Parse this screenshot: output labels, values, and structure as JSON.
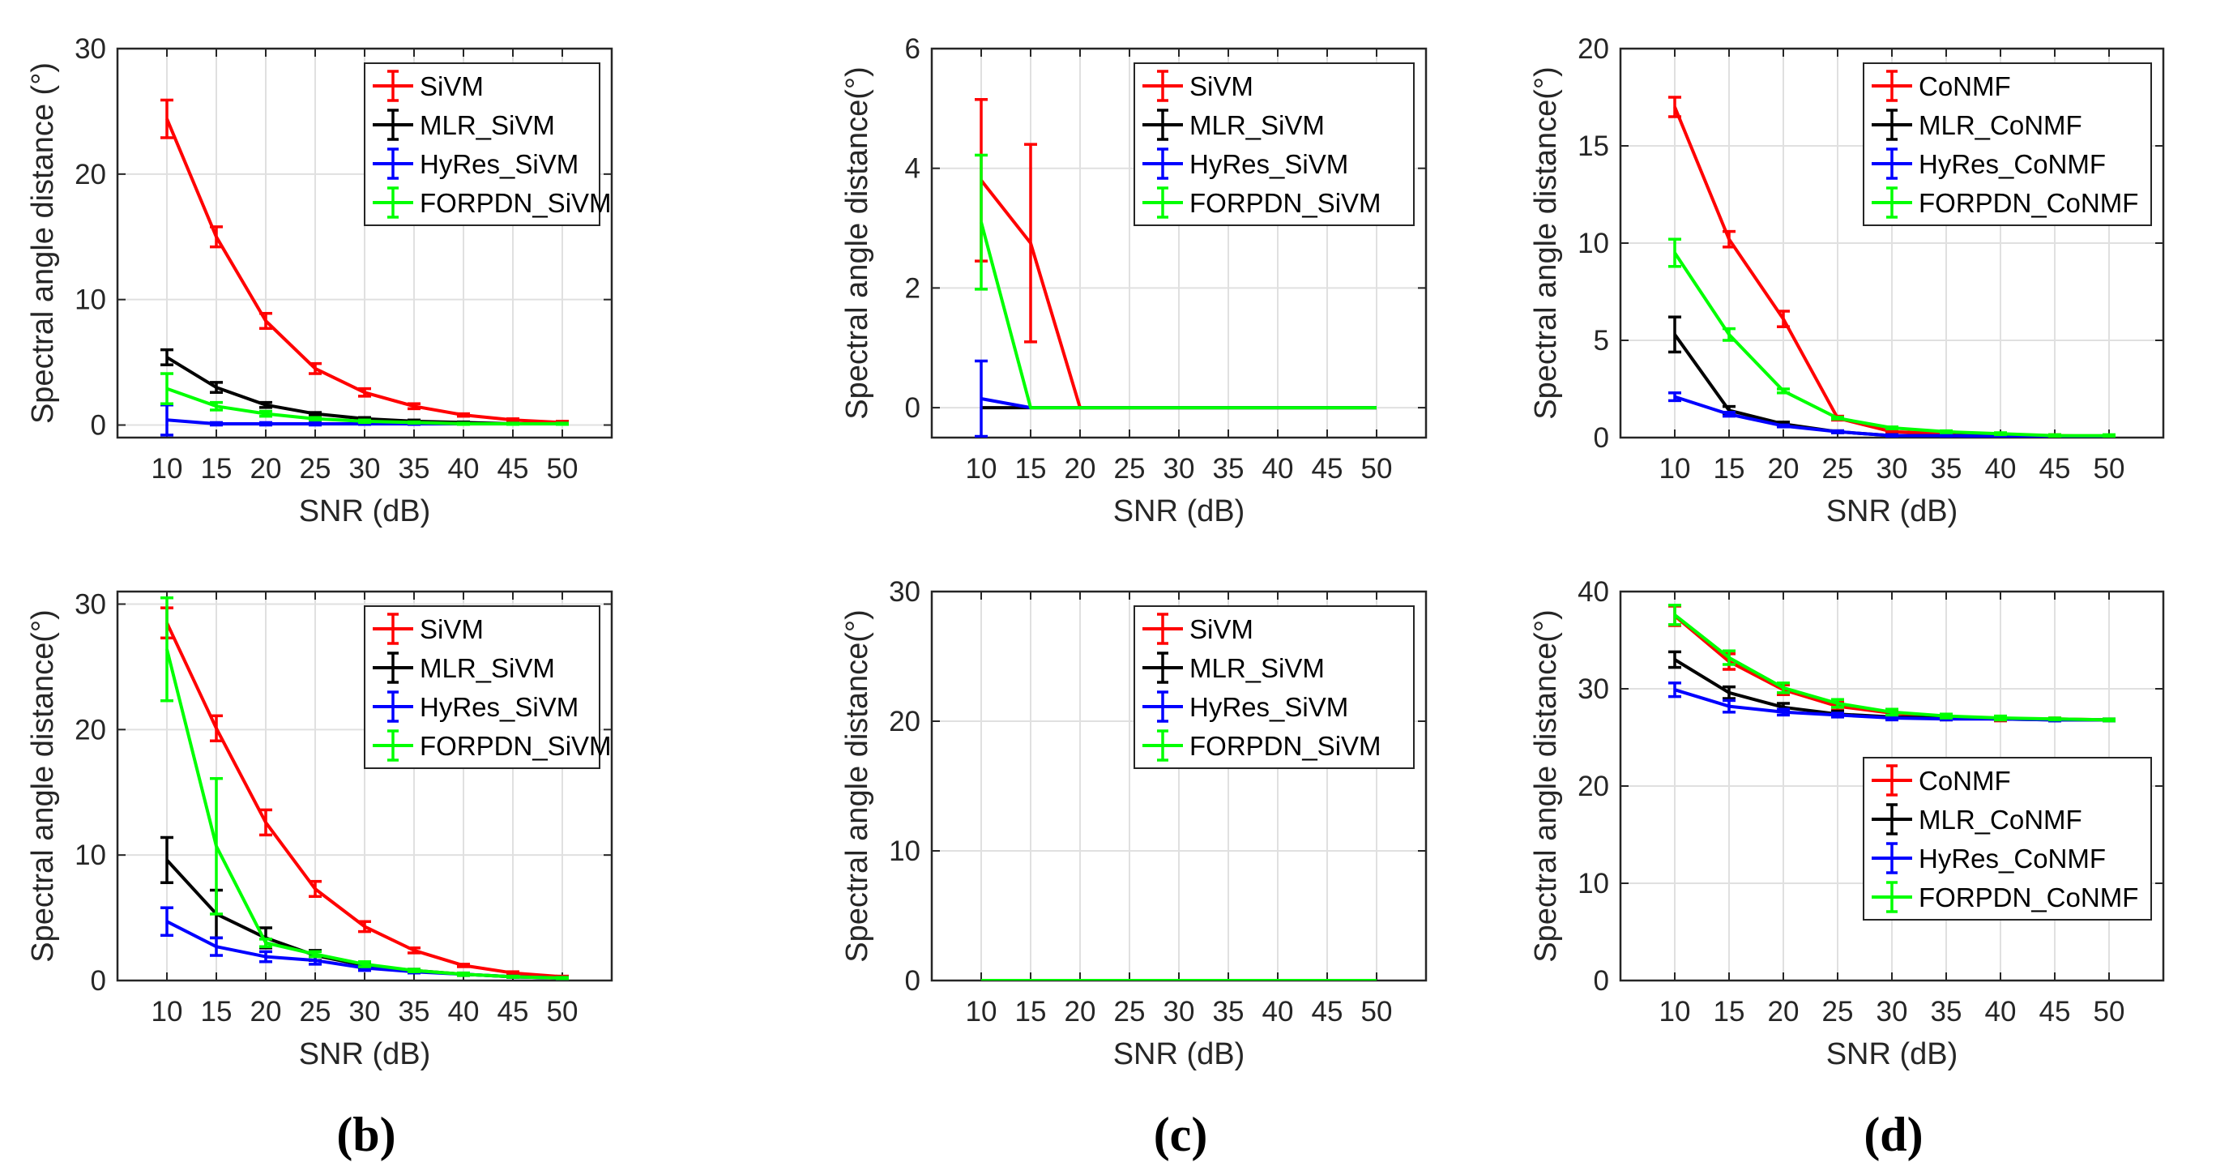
{
  "colors": {
    "red": "#ff0000",
    "black": "#000000",
    "blue": "#0000ff",
    "green": "#00ff00",
    "grid": "#e0e0e0",
    "axis": "#262626"
  },
  "captions": [
    "(b)",
    "(c)",
    "(d)"
  ],
  "chart_data": [
    {
      "type": "line",
      "ylim": [
        -1,
        30
      ],
      "yticks": [
        0,
        10,
        20,
        30
      ],
      "xlabel": "SNR (dB)",
      "ylabel": "Spectral angle distance (°)",
      "x": [
        10,
        15,
        20,
        25,
        30,
        35,
        40,
        45,
        50
      ],
      "xticks": [
        10,
        15,
        20,
        25,
        30,
        35,
        40,
        45,
        50
      ],
      "legend": {
        "position": "top-right"
      },
      "series": [
        {
          "name": "SiVM",
          "color": "red",
          "values": [
            24.4,
            15.0,
            8.3,
            4.5,
            2.6,
            1.5,
            0.8,
            0.4,
            0.2
          ],
          "err": [
            1.5,
            0.8,
            0.6,
            0.4,
            0.3,
            0.2,
            0.1,
            0.1,
            0.1
          ]
        },
        {
          "name": "MLR_SiVM",
          "color": "black",
          "values": [
            5.4,
            3.0,
            1.6,
            0.9,
            0.5,
            0.3,
            0.2,
            0.1,
            0.1
          ],
          "err": [
            0.6,
            0.4,
            0.2,
            0.1,
            0.1,
            0.1,
            0.05,
            0.05,
            0.05
          ]
        },
        {
          "name": "HyRes_SiVM",
          "color": "blue",
          "values": [
            0.4,
            0.1,
            0.1,
            0.1,
            0.1,
            0.1,
            0.1,
            0.1,
            0.1
          ],
          "err": [
            1.2,
            0.1,
            0.1,
            0.1,
            0.05,
            0.05,
            0.05,
            0.05,
            0.05
          ]
        },
        {
          "name": "FORPDN_SiVM",
          "color": "green",
          "values": [
            2.9,
            1.5,
            0.9,
            0.5,
            0.3,
            0.2,
            0.1,
            0.1,
            0.1
          ],
          "err": [
            1.2,
            0.3,
            0.2,
            0.1,
            0.1,
            0.05,
            0.05,
            0.05,
            0.05
          ]
        }
      ]
    },
    {
      "type": "line",
      "ylim": [
        -0.5,
        6
      ],
      "yticks": [
        0,
        2,
        4,
        6
      ],
      "xlabel": "SNR (dB)",
      "ylabel": "Spectral angle distance(°)",
      "x": [
        10,
        15,
        20,
        25,
        30,
        35,
        40,
        45,
        50
      ],
      "xticks": [
        10,
        15,
        20,
        25,
        30,
        35,
        40,
        45,
        50
      ],
      "legend": {
        "position": "top-right"
      },
      "series": [
        {
          "name": "SiVM",
          "color": "red",
          "values": [
            3.8,
            2.75,
            0,
            0,
            0,
            0,
            0,
            0,
            0
          ],
          "err": [
            1.35,
            1.65,
            0,
            0,
            0,
            0,
            0,
            0,
            0
          ]
        },
        {
          "name": "MLR_SiVM",
          "color": "black",
          "values": [
            0,
            0,
            0,
            0,
            0,
            0,
            0,
            0,
            0
          ],
          "err": [
            0,
            0,
            0,
            0,
            0,
            0,
            0,
            0,
            0
          ]
        },
        {
          "name": "HyRes_SiVM",
          "color": "blue",
          "values": [
            0.15,
            0,
            0,
            0,
            0,
            0,
            0,
            0,
            0
          ],
          "err": [
            0.63,
            0,
            0,
            0,
            0,
            0,
            0,
            0,
            0
          ]
        },
        {
          "name": "FORPDN_SiVM",
          "color": "green",
          "values": [
            3.1,
            0,
            0,
            0,
            0,
            0,
            0,
            0,
            0
          ],
          "err": [
            1.12,
            0,
            0,
            0,
            0,
            0,
            0,
            0,
            0
          ]
        }
      ]
    },
    {
      "type": "line",
      "ylim": [
        0,
        20
      ],
      "yticks": [
        0,
        5,
        10,
        15,
        20
      ],
      "xlabel": "SNR (dB)",
      "ylabel": "Spectral angle distance(°)",
      "x": [
        10,
        15,
        20,
        25,
        30,
        35,
        40,
        45,
        50
      ],
      "xticks": [
        10,
        15,
        20,
        25,
        30,
        35,
        40,
        45,
        50
      ],
      "legend": {
        "position": "top-right"
      },
      "series": [
        {
          "name": "CoNMF",
          "color": "red",
          "values": [
            17.0,
            10.2,
            6.1,
            1.0,
            0.3,
            0.2,
            0.1,
            0.1,
            0.05
          ],
          "err": [
            0.5,
            0.4,
            0.4,
            0.1,
            0.05,
            0.05,
            0.05,
            0.05,
            0.05
          ]
        },
        {
          "name": "MLR_CoNMF",
          "color": "black",
          "values": [
            5.3,
            1.4,
            0.7,
            0.3,
            0.1,
            0.1,
            0.1,
            0.05,
            0.05
          ],
          "err": [
            0.9,
            0.2,
            0.1,
            0.05,
            0.05,
            0.05,
            0.05,
            0.05,
            0.05
          ]
        },
        {
          "name": "HyRes_CoNMF",
          "color": "blue",
          "values": [
            2.1,
            1.2,
            0.6,
            0.3,
            0.1,
            0.1,
            0.05,
            0.05,
            0.05
          ],
          "err": [
            0.2,
            0.1,
            0.05,
            0.05,
            0.05,
            0.05,
            0.05,
            0.05,
            0.05
          ]
        },
        {
          "name": "FORPDN_CoNMF",
          "color": "green",
          "values": [
            9.5,
            5.3,
            2.4,
            1.0,
            0.5,
            0.3,
            0.2,
            0.1,
            0.1
          ],
          "err": [
            0.7,
            0.3,
            0.1,
            0.05,
            0.05,
            0.05,
            0.05,
            0.05,
            0.05
          ]
        }
      ]
    },
    {
      "type": "line",
      "ylim": [
        0,
        31
      ],
      "yticks": [
        0,
        10,
        20,
        30
      ],
      "xlabel": "SNR (dB)",
      "ylabel": "Spectral angle distance(°)",
      "x": [
        10,
        15,
        20,
        25,
        30,
        35,
        40,
        45,
        50
      ],
      "xticks": [
        10,
        15,
        20,
        25,
        30,
        35,
        40,
        45,
        50
      ],
      "legend": {
        "position": "top-right"
      },
      "series": [
        {
          "name": "SiVM",
          "color": "red",
          "values": [
            28.5,
            20.1,
            12.6,
            7.3,
            4.3,
            2.4,
            1.2,
            0.6,
            0.3
          ],
          "err": [
            1.2,
            1.0,
            1.0,
            0.6,
            0.4,
            0.2,
            0.1,
            0.1,
            0.05
          ]
        },
        {
          "name": "MLR_SiVM",
          "color": "black",
          "values": [
            9.6,
            5.3,
            3.4,
            2.0,
            1.2,
            0.8,
            0.5,
            0.3,
            0.2
          ],
          "err": [
            1.8,
            1.9,
            0.8,
            0.4,
            0.2,
            0.1,
            0.1,
            0.05,
            0.05
          ]
        },
        {
          "name": "HyRes_SiVM",
          "color": "blue",
          "values": [
            4.7,
            2.7,
            1.9,
            1.6,
            1.0,
            0.7,
            0.5,
            0.3,
            0.2
          ],
          "err": [
            1.1,
            0.7,
            0.4,
            0.3,
            0.2,
            0.1,
            0.1,
            0.05,
            0.05
          ]
        },
        {
          "name": "FORPDN_SiVM",
          "color": "green",
          "values": [
            26.4,
            10.7,
            3.0,
            2.1,
            1.3,
            0.8,
            0.5,
            0.3,
            0.2
          ],
          "err": [
            4.1,
            5.4,
            0.3,
            0.2,
            0.2,
            0.1,
            0.1,
            0.05,
            0.05
          ]
        }
      ]
    },
    {
      "type": "line",
      "ylim": [
        0,
        30
      ],
      "yticks": [
        0,
        10,
        20,
        30
      ],
      "xlabel": "SNR (dB)",
      "ylabel": "Spectral angle distance(°)",
      "x": [
        10,
        15,
        20,
        25,
        30,
        35,
        40,
        45,
        50
      ],
      "xticks": [
        10,
        15,
        20,
        25,
        30,
        35,
        40,
        45,
        50
      ],
      "legend": {
        "position": "top-right"
      },
      "series": [
        {
          "name": "SiVM",
          "color": "red",
          "values": [
            0,
            0,
            0,
            0,
            0,
            0,
            0,
            0,
            0
          ],
          "err": [
            0,
            0,
            0,
            0,
            0,
            0,
            0,
            0,
            0
          ]
        },
        {
          "name": "MLR_SiVM",
          "color": "black",
          "values": [
            0,
            0,
            0,
            0,
            0,
            0,
            0,
            0,
            0
          ],
          "err": [
            0,
            0,
            0,
            0,
            0,
            0,
            0,
            0,
            0
          ]
        },
        {
          "name": "HyRes_SiVM",
          "color": "blue",
          "values": [
            0,
            0,
            0,
            0,
            0,
            0,
            0,
            0,
            0
          ],
          "err": [
            0,
            0,
            0,
            0,
            0,
            0,
            0,
            0,
            0
          ]
        },
        {
          "name": "FORPDN_SiVM",
          "color": "green",
          "values": [
            0,
            0,
            0,
            0,
            0,
            0,
            0,
            0,
            0
          ],
          "err": [
            0,
            0,
            0,
            0,
            0,
            0,
            0,
            0,
            0
          ]
        }
      ]
    },
    {
      "type": "line",
      "ylim": [
        0,
        40
      ],
      "yticks": [
        0,
        10,
        20,
        30,
        40
      ],
      "xlabel": "SNR (dB)",
      "ylabel": "Spectral angle distance(°)",
      "x": [
        10,
        15,
        20,
        25,
        30,
        35,
        40,
        45,
        50
      ],
      "xticks": [
        10,
        15,
        20,
        25,
        30,
        35,
        40,
        45,
        50
      ],
      "legend": {
        "position": "center-right"
      },
      "series": [
        {
          "name": "CoNMF",
          "color": "red",
          "values": [
            37.5,
            32.8,
            29.9,
            28.2,
            27.5,
            27.1,
            26.9,
            26.9,
            26.8
          ],
          "err": [
            1.0,
            0.8,
            0.5,
            0.4,
            0.3,
            0.2,
            0.2,
            0.1,
            0.1
          ]
        },
        {
          "name": "MLR_CoNMF",
          "color": "black",
          "values": [
            33.0,
            29.6,
            28.1,
            27.4,
            27.1,
            27.0,
            26.9,
            26.8,
            26.8
          ],
          "err": [
            0.8,
            0.6,
            0.4,
            0.3,
            0.2,
            0.2,
            0.1,
            0.1,
            0.1
          ]
        },
        {
          "name": "HyRes_CoNMF",
          "color": "blue",
          "values": [
            29.9,
            28.2,
            27.6,
            27.3,
            27.0,
            26.9,
            26.9,
            26.8,
            26.8
          ],
          "err": [
            0.7,
            0.6,
            0.3,
            0.2,
            0.2,
            0.1,
            0.1,
            0.1,
            0.1
          ]
        },
        {
          "name": "FORPDN_CoNMF",
          "color": "green",
          "values": [
            37.6,
            33.2,
            30.1,
            28.5,
            27.6,
            27.2,
            27.0,
            26.9,
            26.8
          ],
          "err": [
            1.0,
            0.7,
            0.5,
            0.4,
            0.3,
            0.2,
            0.2,
            0.1,
            0.1
          ]
        }
      ]
    }
  ]
}
